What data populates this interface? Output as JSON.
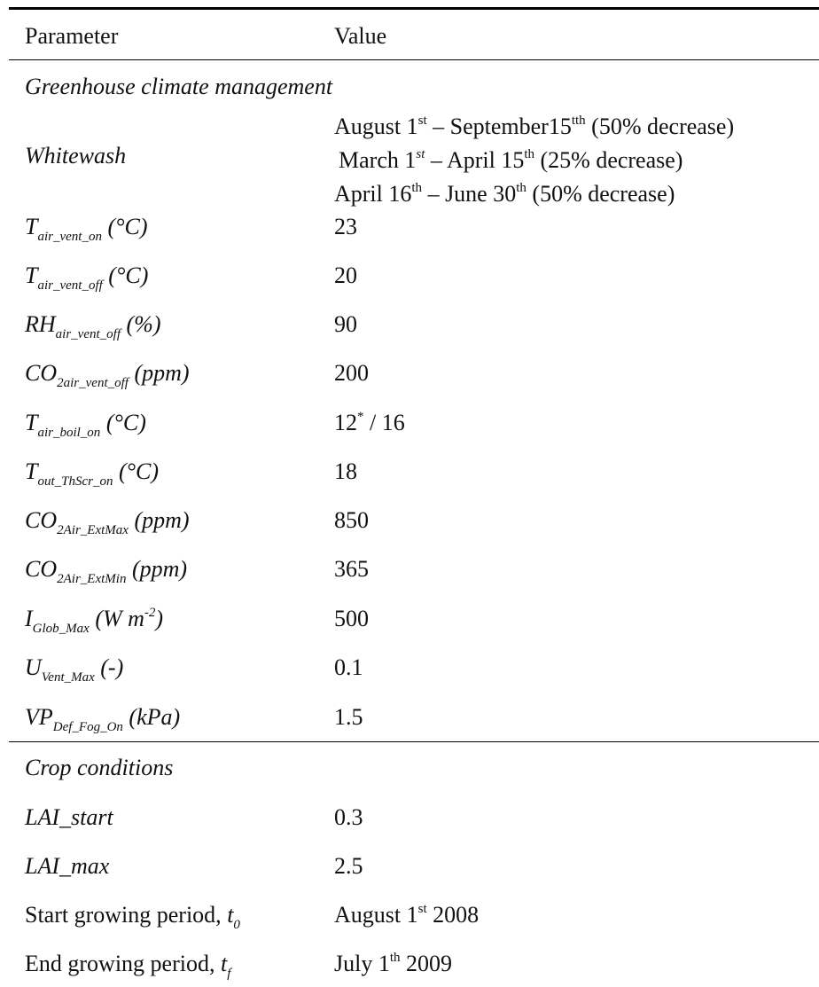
{
  "table": {
    "header": {
      "parameter": "Parameter",
      "value": "Value"
    },
    "section_climate": "Greenhouse climate management",
    "whitewash": {
      "label": "Whitewash",
      "line1": {
        "pre": "August 1",
        "sup1": "st",
        "mid": " – September15",
        "sup2": "tth",
        "post": " (50% decrease)"
      },
      "line2": {
        "pre": "March 1",
        "sup1": "st",
        "mid": " – April 15",
        "sup2": "th",
        "post": " (25% decrease)"
      },
      "line3": {
        "pre": "April 16",
        "sup1": "th",
        "mid": " – June 30",
        "sup2": "th",
        "post": " (50% decrease)"
      }
    },
    "rows": [
      {
        "base": "T",
        "sub": "air_vent_on",
        "unit": " (°C)",
        "value": "23"
      },
      {
        "base": "T",
        "sub": "air_vent_off",
        "unit": " (°C)",
        "value": "20"
      },
      {
        "base": "RH",
        "sub": "air_vent_off",
        "unit": " (%)",
        "value": "90"
      },
      {
        "base": "CO",
        "sub": "2air_vent_off",
        "unit": " (ppm)",
        "value": "200"
      },
      {
        "base": "T",
        "sub": "air_boil_on",
        "unit": " (°C)",
        "value_pre": "12",
        "value_sup": "*",
        "value_post": " / 16"
      },
      {
        "base": "T",
        "sub": "out_ThScr_on",
        "unit": " (°C)",
        "value": "18"
      },
      {
        "base": "CO",
        "sub": "2Air_ExtMax",
        "unit": " (ppm)",
        "value": "850"
      },
      {
        "base": "CO",
        "sub": "2Air_ExtMin",
        "unit": " (ppm)",
        "value": "365"
      },
      {
        "base": "I",
        "sub": "Glob_Max",
        "unit_pre": " (W m",
        "unit_sup": "-2",
        "unit_post": ")",
        "value": "500"
      },
      {
        "base": "U",
        "sub": "Vent_Max",
        "unit": " (-)",
        "value": "0.1"
      },
      {
        "base": "VP",
        "sub": "Def_Fog_On",
        "unit": " (kPa)",
        "value": "1.5"
      }
    ],
    "section_crop": "Crop conditions",
    "crop": [
      {
        "label": "LAI_start",
        "value": "0.3"
      },
      {
        "label": "LAI_max",
        "value": "2.5"
      },
      {
        "label": "Start growing period, ",
        "sym": "t",
        "sym_sub": "0",
        "value_pre": "August 1",
        "value_sup": "st",
        "value_post": " 2008"
      },
      {
        "label": "End growing period, ",
        "sym": "t",
        "sym_sub": "f",
        "value_pre": "July 1",
        "value_sup": "th",
        "value_post": " 2009"
      }
    ]
  }
}
